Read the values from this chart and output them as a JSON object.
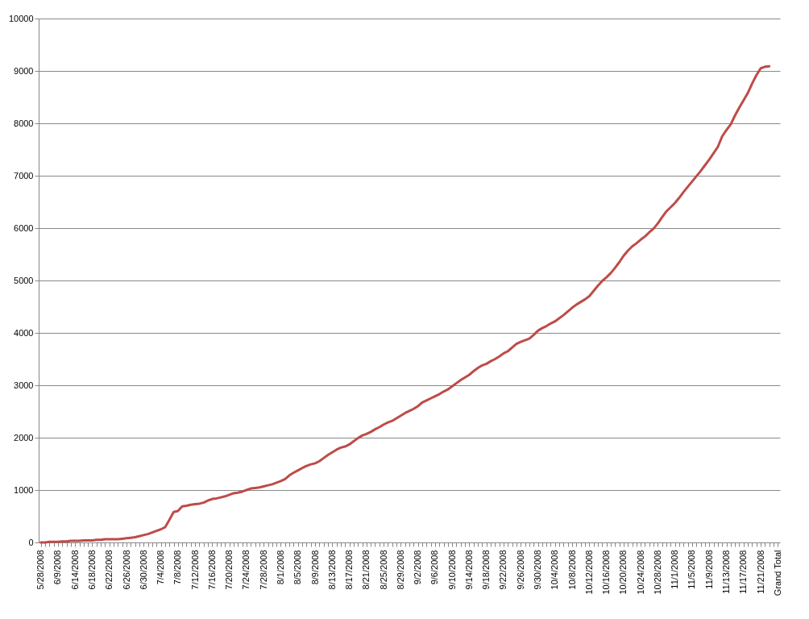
{
  "chart_data": {
    "type": "line",
    "categories": [
      "5/28/2008",
      null,
      null,
      null,
      "6/9/2008",
      null,
      null,
      null,
      "6/14/2008",
      null,
      null,
      null,
      "6/18/2008",
      null,
      null,
      null,
      "6/22/2008",
      null,
      null,
      null,
      "6/26/2008",
      null,
      null,
      null,
      "6/30/2008",
      null,
      null,
      null,
      "7/4/2008",
      null,
      null,
      null,
      "7/8/2008",
      null,
      null,
      null,
      "7/12/2008",
      null,
      null,
      null,
      "7/16/2008",
      null,
      null,
      null,
      "7/20/2008",
      null,
      null,
      null,
      "7/24/2008",
      null,
      null,
      null,
      "7/28/2008",
      null,
      null,
      null,
      "8/1/2008",
      null,
      null,
      null,
      "8/5/2008",
      null,
      null,
      null,
      "8/9/2008",
      null,
      null,
      null,
      "8/13/2008",
      null,
      null,
      null,
      "8/17/2008",
      null,
      null,
      null,
      "8/21/2008",
      null,
      null,
      null,
      "8/25/2008",
      null,
      null,
      null,
      "8/29/2008",
      null,
      null,
      null,
      "9/2/2008",
      null,
      null,
      null,
      "9/6/2008",
      null,
      null,
      null,
      "9/10/2008",
      null,
      null,
      null,
      "9/14/2008",
      null,
      null,
      null,
      "9/18/2008",
      null,
      null,
      null,
      "9/22/2008",
      null,
      null,
      null,
      "9/26/2008",
      null,
      null,
      null,
      "9/30/2008",
      null,
      null,
      null,
      "10/4/2008",
      null,
      null,
      null,
      "10/8/2008",
      null,
      null,
      null,
      "10/12/2008",
      null,
      null,
      null,
      "10/16/2008",
      null,
      null,
      null,
      "10/20/2008",
      null,
      null,
      null,
      "10/24/2008",
      null,
      null,
      null,
      "10/28/2008",
      null,
      null,
      null,
      "11/1/2008",
      null,
      null,
      null,
      "11/5/2008",
      null,
      null,
      null,
      "11/9/2008",
      null,
      null,
      null,
      "11/13/2008",
      null,
      null,
      null,
      "11/17/2008",
      null,
      null,
      null,
      "11/21/2008",
      null,
      null,
      null,
      "Grand Total"
    ],
    "series": [
      {
        "color": "#be4b48",
        "values": [
          0,
          0,
          10,
          10,
          10,
          20,
          20,
          30,
          30,
          30,
          40,
          40,
          40,
          50,
          50,
          60,
          60,
          60,
          60,
          70,
          80,
          90,
          100,
          120,
          140,
          160,
          190,
          220,
          250,
          290,
          430,
          580,
          600,
          690,
          700,
          720,
          730,
          740,
          760,
          800,
          830,
          840,
          860,
          880,
          910,
          940,
          950,
          970,
          1000,
          1030,
          1040,
          1050,
          1070,
          1090,
          1110,
          1140,
          1170,
          1210,
          1280,
          1330,
          1375,
          1420,
          1460,
          1490,
          1510,
          1550,
          1610,
          1670,
          1720,
          1770,
          1810,
          1830,
          1870,
          1930,
          1990,
          2040,
          2070,
          2110,
          2160,
          2200,
          2250,
          2290,
          2320,
          2370,
          2420,
          2470,
          2510,
          2550,
          2600,
          2670,
          2710,
          2750,
          2790,
          2830,
          2880,
          2920,
          2980,
          3040,
          3100,
          3150,
          3200,
          3270,
          3330,
          3380,
          3410,
          3460,
          3500,
          3550,
          3610,
          3650,
          3720,
          3790,
          3830,
          3860,
          3890,
          3960,
          4040,
          4090,
          4130,
          4180,
          4220,
          4280,
          4340,
          4410,
          4480,
          4540,
          4590,
          4640,
          4700,
          4800,
          4900,
          4990,
          5060,
          5140,
          5240,
          5350,
          5470,
          5570,
          5650,
          5710,
          5780,
          5840,
          5920,
          5990,
          6090,
          6210,
          6320,
          6400,
          6480,
          6580,
          6690,
          6790,
          6890,
          6990,
          7090,
          7200,
          7310,
          7430,
          7550,
          7750,
          7870,
          7980,
          8150,
          8300,
          8440,
          8580,
          8760,
          8920,
          9050,
          9080,
          9090,
          null,
          null
        ]
      }
    ],
    "ylim": [
      0,
      10000
    ],
    "yticks": [
      0,
      1000,
      2000,
      3000,
      4000,
      5000,
      6000,
      7000,
      8000,
      9000,
      10000
    ],
    "grid": "y",
    "legend": false,
    "marker": "none",
    "line_style": "solid"
  }
}
